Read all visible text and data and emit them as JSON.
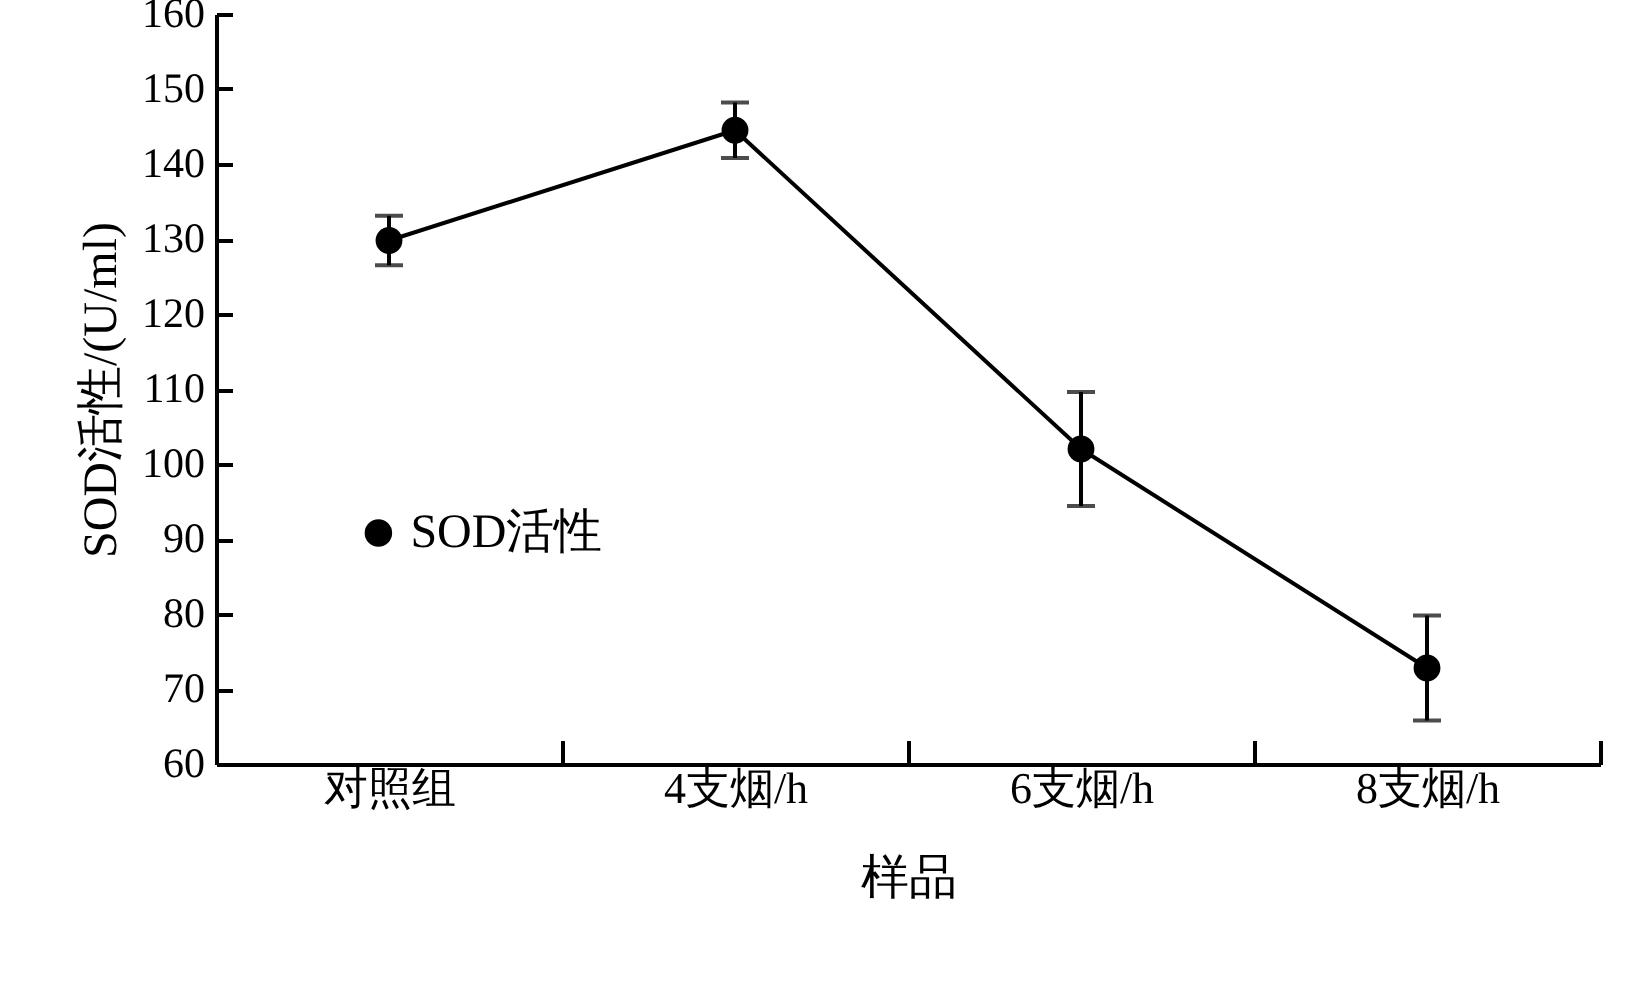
{
  "chart_data": {
    "type": "line",
    "xlabel": "样品",
    "ylabel": "SOD活性/(U/ml)",
    "categories": [
      "对照组",
      "4支烟/h",
      "6支烟/h",
      "8支烟/h"
    ],
    "series": [
      {
        "name": "SOD活性",
        "color": "#000000",
        "values": [
          129.8,
          144.5,
          102,
          72.8
        ],
        "errors": [
          3.3,
          3.7,
          7.6,
          7
        ]
      }
    ],
    "ylim": [
      60,
      160
    ],
    "yticks": [
      60,
      70,
      80,
      90,
      100,
      110,
      120,
      130,
      140,
      150,
      160
    ],
    "grid": false,
    "legend": "left",
    "marker": "circle",
    "line_style": "solid"
  }
}
